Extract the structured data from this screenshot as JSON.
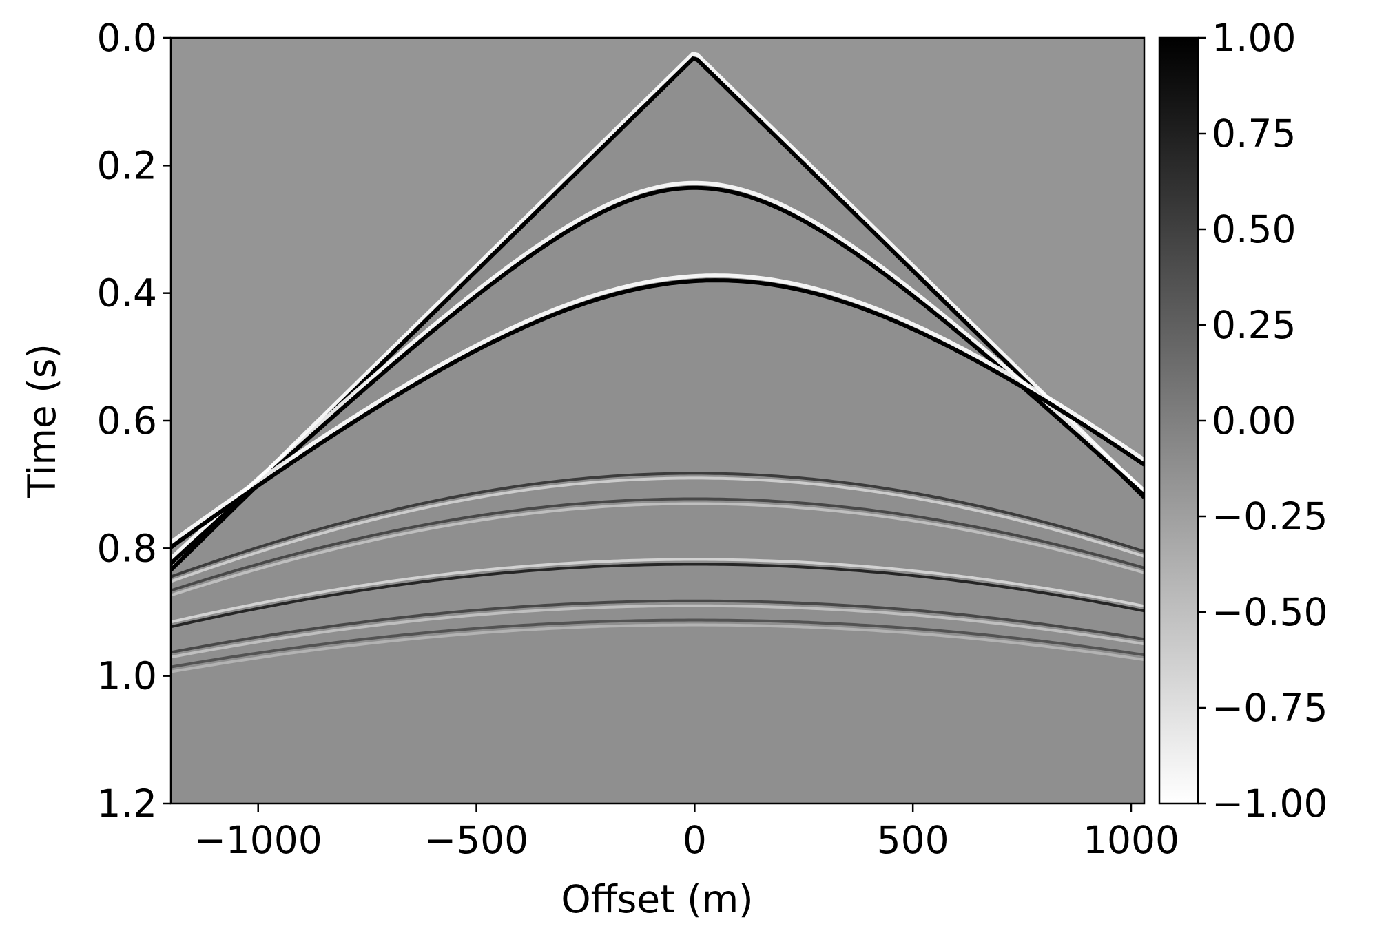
{
  "chart_data": {
    "type": "heatmap",
    "title": "",
    "xlabel": "Offset (m)",
    "ylabel": "Time (s)",
    "xlim": [
      -1200,
      1030
    ],
    "ylim": [
      0.0,
      1.2
    ],
    "y_inverted": true,
    "grid": false,
    "x_ticks": [
      {
        "value": -1000,
        "label": "−1000"
      },
      {
        "value": -500,
        "label": "−500"
      },
      {
        "value": 0,
        "label": "0"
      },
      {
        "value": 500,
        "label": "500"
      },
      {
        "value": 1000,
        "label": "1000"
      }
    ],
    "y_ticks": [
      {
        "value": 0.0,
        "label": "0.0"
      },
      {
        "value": 0.2,
        "label": "0.2"
      },
      {
        "value": 0.4,
        "label": "0.4"
      },
      {
        "value": 0.6,
        "label": "0.6"
      },
      {
        "value": 0.8,
        "label": "0.8"
      },
      {
        "value": 1.0,
        "label": "1.0"
      },
      {
        "value": 1.2,
        "label": "1.2"
      }
    ],
    "colorbar": {
      "colormap": "gray_r",
      "range": [
        -1.0,
        1.0
      ],
      "ticks": [
        {
          "value": 1.0,
          "label": "1.00"
        },
        {
          "value": 0.75,
          "label": "0.75"
        },
        {
          "value": 0.5,
          "label": "0.50"
        },
        {
          "value": 0.25,
          "label": "0.25"
        },
        {
          "value": 0.0,
          "label": "0.00"
        },
        {
          "value": -0.25,
          "label": "−0.25"
        },
        {
          "value": -0.5,
          "label": "−0.50"
        },
        {
          "value": -0.75,
          "label": "−0.75"
        },
        {
          "value": -1.0,
          "label": "−1.00"
        }
      ]
    },
    "background_value": 0.0,
    "events": [
      {
        "kind": "direct",
        "apex_x": 0,
        "t0": 0.03,
        "slope": 0.00067,
        "amplitude": 1.0
      },
      {
        "kind": "hyperbola",
        "apex_x": 0,
        "t0": 0.235,
        "velocity": 1520,
        "amplitude": 1.0
      },
      {
        "kind": "hyperbola",
        "apex_x": 50,
        "t0": 0.38,
        "velocity": 1780,
        "amplitude": 1.0
      },
      {
        "kind": "hyperbola",
        "apex_x": 0,
        "t0": 0.69,
        "velocity": 2400,
        "amplitude": -0.6
      },
      {
        "kind": "hyperbola",
        "apex_x": 0,
        "t0": 0.73,
        "velocity": 2500,
        "amplitude": -0.5
      },
      {
        "kind": "hyperbola",
        "apex_x": 0,
        "t0": 0.825,
        "velocity": 2900,
        "amplitude": 0.7
      },
      {
        "kind": "hyperbola",
        "apex_x": 0,
        "t0": 0.89,
        "velocity": 3100,
        "amplitude": -0.5
      },
      {
        "kind": "hyperbola",
        "apex_x": 0,
        "t0": 0.92,
        "velocity": 3200,
        "amplitude": -0.4
      }
    ]
  }
}
